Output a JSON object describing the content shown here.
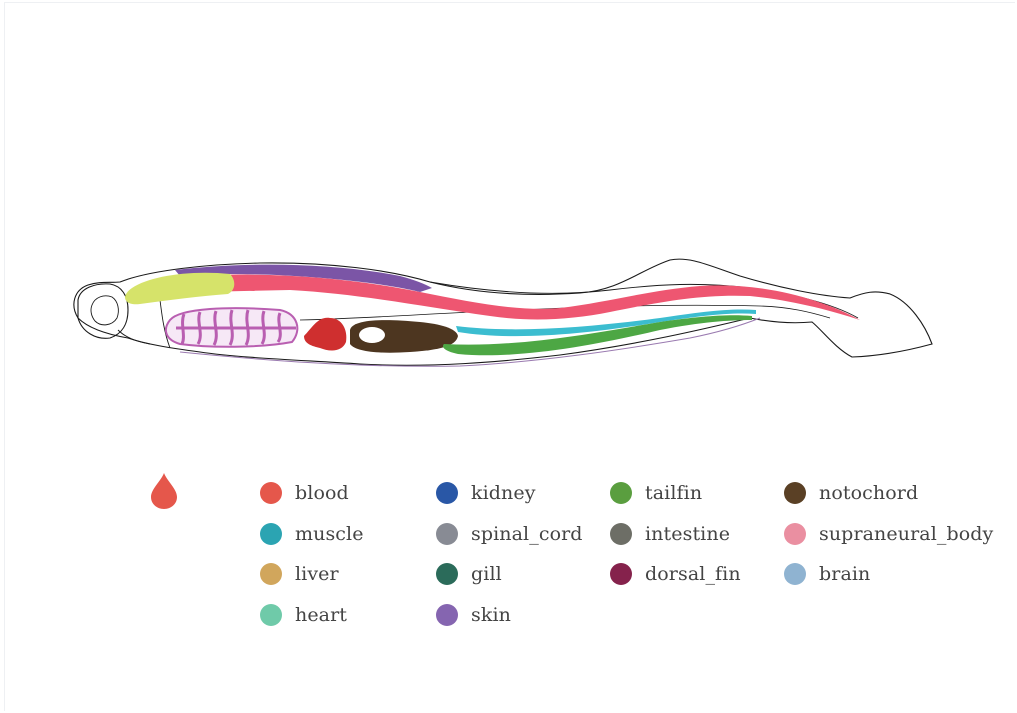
{
  "legend": {
    "items": [
      {
        "label": "blood",
        "color": "#e5574b"
      },
      {
        "label": "kidney",
        "color": "#2957a6"
      },
      {
        "label": "tailfin",
        "color": "#5a9e3f"
      },
      {
        "label": "notochord",
        "color": "#5a4025"
      },
      {
        "label": "muscle",
        "color": "#2ba4b2"
      },
      {
        "label": "spinal_cord",
        "color": "#888b94"
      },
      {
        "label": "intestine",
        "color": "#6d6e66"
      },
      {
        "label": "supraneural_body",
        "color": "#ea8fa1"
      },
      {
        "label": "liver",
        "color": "#d1a65c"
      },
      {
        "label": "gill",
        "color": "#2b6b5a"
      },
      {
        "label": "dorsal_fin",
        "color": "#85224c"
      },
      {
        "label": "brain",
        "color": "#8fb3d1"
      },
      {
        "label": "heart",
        "color": "#6fcaa9"
      },
      {
        "label": "skin",
        "color": "#8565b0"
      }
    ]
  },
  "marker": {
    "icon": "blood-drop-icon",
    "color": "#e5574b"
  },
  "fish_colors": {
    "outline": "#1a1a1a",
    "brain_region": "#d6e36a",
    "skin": "#7b55a6",
    "supraneural_body": "#ee5671",
    "yolk": "#b95fb1",
    "heart": "#cf2f2f",
    "notochord": "#4d3620",
    "muscle": "#3cbdd0",
    "tailfin": "#4da744",
    "ventral_line": "#9a7ab0"
  }
}
